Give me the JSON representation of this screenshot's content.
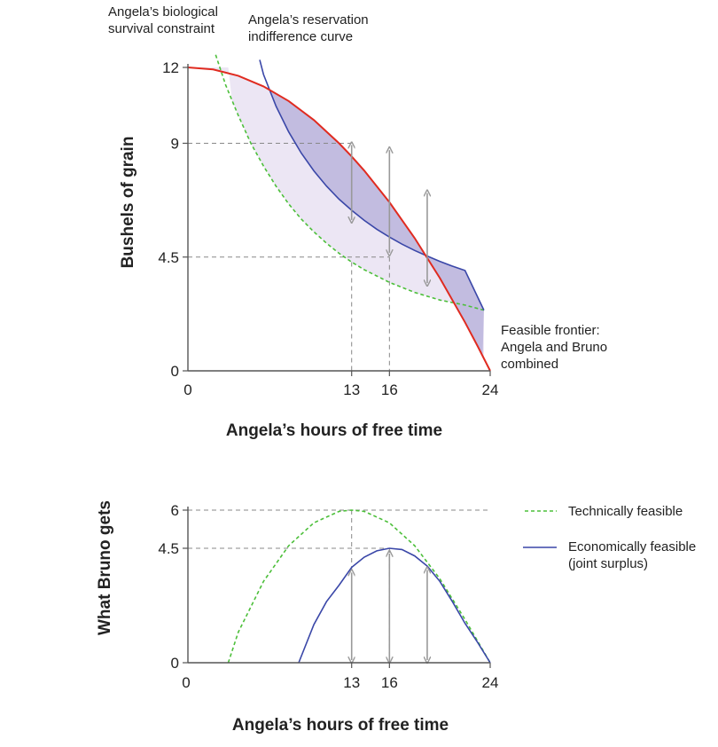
{
  "colors": {
    "frontier": "#e02b20",
    "indifference": "#3a47a8",
    "survival": "#4cbf3a",
    "region_light": "#ece6f4",
    "region_dark": "#c2bce0",
    "arrow": "#999999",
    "guide": "#888888",
    "axis": "#555555"
  },
  "chart_data": [
    {
      "type": "line",
      "title": "",
      "xlabel": "Angela’s hours of free time",
      "ylabel": "Bushels of grain",
      "xlim": [
        0,
        24
      ],
      "ylim": [
        0,
        12
      ],
      "xticks": [
        "0",
        "13",
        "16",
        "24"
      ],
      "yticks": [
        "0",
        "4.5",
        "9",
        "12"
      ],
      "series": [
        {
          "name": "Feasible frontier: Angela and Bruno combined",
          "x": [
            0,
            2,
            4,
            6,
            8,
            10,
            12,
            13,
            14,
            16,
            18,
            20,
            22,
            23,
            24
          ],
          "y": [
            12,
            11.92,
            11.67,
            11.25,
            10.67,
            9.92,
            9.0,
            8.48,
            7.92,
            6.67,
            5.25,
            3.67,
            1.92,
            0.98,
            0
          ]
        },
        {
          "name": "Angela’s reservation indifference curve",
          "x": [
            5.7,
            6,
            7,
            8,
            9,
            10,
            11,
            12,
            13,
            14,
            15,
            16,
            17,
            18,
            19,
            20,
            21,
            22,
            23.5
          ],
          "y": [
            12.3,
            11.72,
            10.46,
            9.45,
            8.61,
            7.91,
            7.31,
            6.79,
            6.35,
            5.95,
            5.6,
            5.29,
            5.01,
            4.76,
            4.54,
            4.33,
            4.14,
            3.97,
            2.4
          ]
        },
        {
          "name": "Angela’s biological survival constraint",
          "x": [
            2.2,
            3,
            4,
            5,
            6,
            7,
            8,
            9,
            10,
            11,
            12,
            13,
            14,
            15,
            16,
            18,
            20,
            22,
            23.5
          ],
          "y": [
            12.5,
            11.3,
            10.1,
            9.0,
            8.1,
            7.3,
            6.6,
            6.0,
            5.5,
            5.05,
            4.65,
            4.3,
            4.0,
            3.75,
            3.5,
            3.1,
            2.8,
            2.6,
            2.4
          ]
        }
      ],
      "annotations": [
        {
          "label": "Angela’s biological",
          "x": 8.6,
          "y": 13.8
        },
        {
          "label": "survival constraint",
          "x": 8.6,
          "y": 13.1
        },
        {
          "label": "Angela’s reservation",
          "x": 11.1,
          "y": 13.5
        },
        {
          "label": "indifference curve",
          "x": 11.1,
          "y": 12.8
        },
        {
          "label": "Feasible frontier:",
          "x": 24.8,
          "y": 1.6
        },
        {
          "label": "Angela and Bruno",
          "x": 24.8,
          "y": 0.9
        },
        {
          "label": "combined",
          "x": 24.8,
          "y": 0.2
        }
      ]
    },
    {
      "type": "line",
      "title": "",
      "xlabel": "Angela’s hours of free time",
      "ylabel": "What Bruno gets",
      "xlim": [
        0,
        24
      ],
      "ylim": [
        0,
        6
      ],
      "xticks": [
        "0",
        "13",
        "16",
        "24"
      ],
      "yticks": [
        "0",
        "4.5",
        "6"
      ],
      "series": [
        {
          "name": "Technically feasible",
          "x": [
            3.2,
            4,
            6,
            8,
            10,
            12,
            13,
            14,
            16,
            18,
            20,
            22,
            24
          ],
          "y": [
            0,
            1.2,
            3.2,
            4.6,
            5.5,
            5.95,
            6.0,
            5.95,
            5.5,
            4.6,
            3.3,
            1.7,
            0
          ]
        },
        {
          "name": "Economically feasible (joint surplus)",
          "x": [
            8.8,
            10,
            11,
            12,
            13,
            14,
            15,
            16,
            17,
            18,
            19,
            20,
            21,
            22,
            23,
            24
          ],
          "y": [
            0,
            1.5,
            2.4,
            3.05,
            3.75,
            4.15,
            4.4,
            4.5,
            4.45,
            4.2,
            3.8,
            3.2,
            2.4,
            1.55,
            0.8,
            0
          ]
        }
      ],
      "legend": [
        {
          "label": "Technically feasible"
        },
        {
          "label": "Economically feasible",
          "label2": "(joint surplus)"
        }
      ]
    }
  ]
}
